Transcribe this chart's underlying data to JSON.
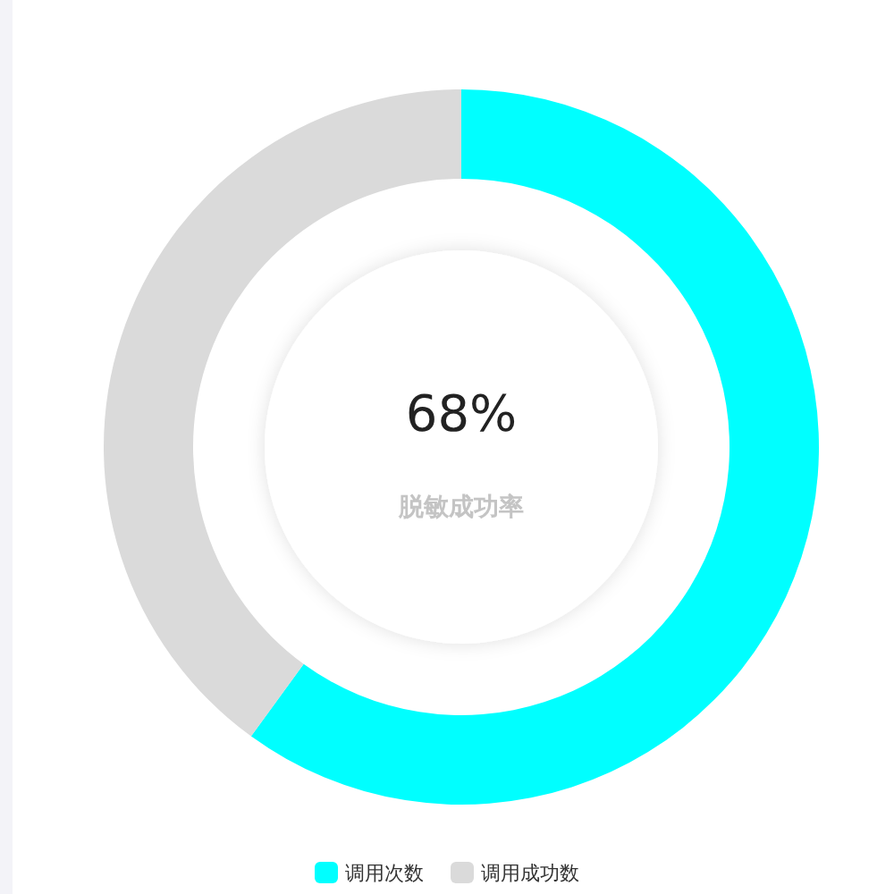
{
  "chart_data": {
    "type": "donut",
    "categories": [
      "调用次数",
      "调用成功数"
    ],
    "values": [
      60,
      40
    ],
    "colors": [
      "#00ffff",
      "#dadada"
    ],
    "legend": "bottom",
    "annotations": [
      "68%",
      "脱敏成功率"
    ]
  }
}
